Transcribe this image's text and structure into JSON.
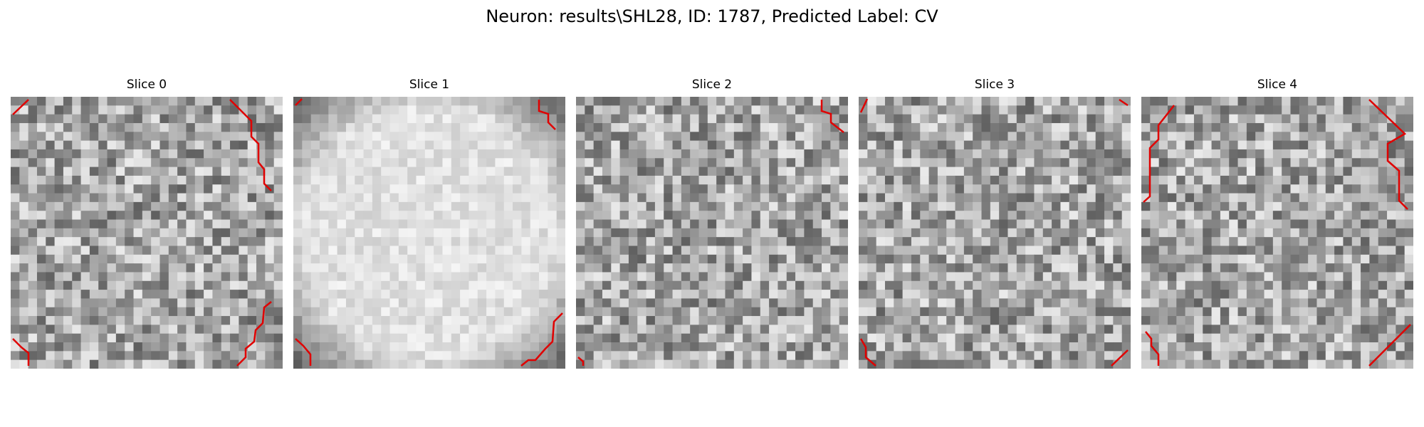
{
  "figure": {
    "title": "Neuron: results\\SHL28, ID: 1787, Predicted Label: CV"
  },
  "panels": [
    {
      "title": "Slice 0",
      "seed": 11,
      "style": "noise",
      "contour_color": "#e00000"
    },
    {
      "title": "Slice 1",
      "seed": 23,
      "style": "bright",
      "contour_color": "#e00000"
    },
    {
      "title": "Slice 2",
      "seed": 37,
      "style": "noise",
      "contour_color": "#e00000"
    },
    {
      "title": "Slice 3",
      "seed": 41,
      "style": "noise",
      "contour_color": "#e00000"
    },
    {
      "title": "Slice 4",
      "seed": 53,
      "style": "noise",
      "contour_color": "#e00000"
    }
  ]
}
